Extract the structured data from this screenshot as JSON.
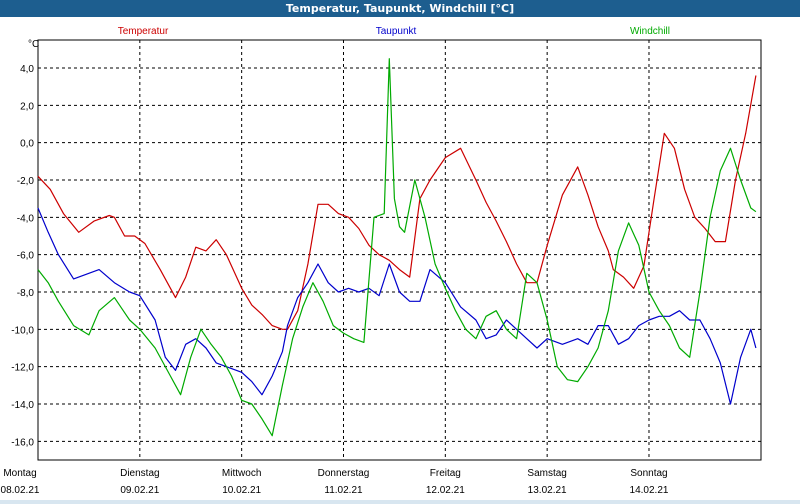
{
  "window_title": "Temperatur, Taupunkt, Windchill [°C]",
  "chart_data": {
    "type": "line",
    "title": "Temperatur, Taupunkt, Windchill [°C]",
    "ylabel": "°C",
    "xlabel": "",
    "ylim": [
      -17.0,
      5.5
    ],
    "xlim": [
      0,
      7.1
    ],
    "yticks": [
      4.0,
      2.0,
      0.0,
      -2.0,
      -4.0,
      -6.0,
      -8.0,
      -10.0,
      -12.0,
      -14.0,
      -16.0
    ],
    "ytick_labels": [
      "4,0",
      "2,0",
      "0,0",
      "-2,0",
      "-4,0",
      "-6,0",
      "-8,0",
      "-10,0",
      "-12,0",
      "-14,0",
      "-16,0"
    ],
    "x_ticks": [
      {
        "day": "Montag",
        "date": "08.02.21",
        "x": 0
      },
      {
        "day": "Dienstag",
        "date": "09.02.21",
        "x": 1
      },
      {
        "day": "Mittwoch",
        "date": "10.02.21",
        "x": 2
      },
      {
        "day": "Donnerstag",
        "date": "11.02.21",
        "x": 3
      },
      {
        "day": "Freitag",
        "date": "12.02.21",
        "x": 4
      },
      {
        "day": "Samstag",
        "date": "13.02.21",
        "x": 5
      },
      {
        "day": "Sonntag",
        "date": "14.02.21",
        "x": 6
      }
    ],
    "grid": true,
    "series": [
      {
        "name": "Temperatur",
        "color": "#cc0000",
        "x": [
          0,
          0.12,
          0.25,
          0.4,
          0.55,
          0.7,
          0.75,
          0.85,
          0.95,
          1.05,
          1.2,
          1.35,
          1.45,
          1.55,
          1.65,
          1.75,
          1.85,
          2.0,
          2.1,
          2.2,
          2.3,
          2.4,
          2.45,
          2.55,
          2.65,
          2.75,
          2.85,
          2.95,
          3.05,
          3.15,
          3.25,
          3.35,
          3.45,
          3.55,
          3.65,
          3.75,
          3.85,
          4.0,
          4.15,
          4.3,
          4.4,
          4.5,
          4.6,
          4.7,
          4.8,
          4.9,
          5.0,
          5.15,
          5.3,
          5.4,
          5.5,
          5.6,
          5.65,
          5.75,
          5.85,
          5.95,
          6.05,
          6.15,
          6.25,
          6.35,
          6.45,
          6.55,
          6.65,
          6.75,
          6.85,
          6.95,
          7.05
        ],
        "values": [
          -1.8,
          -2.5,
          -3.8,
          -4.8,
          -4.2,
          -3.9,
          -4.0,
          -5.0,
          -5.0,
          -5.4,
          -6.8,
          -8.3,
          -7.2,
          -5.6,
          -5.8,
          -5.2,
          -6.0,
          -7.8,
          -8.7,
          -9.2,
          -9.8,
          -10.0,
          -10.0,
          -9.0,
          -6.5,
          -3.3,
          -3.3,
          -3.8,
          -4.0,
          -4.6,
          -5.5,
          -6.0,
          -6.3,
          -6.8,
          -7.2,
          -3.0,
          -2.0,
          -0.8,
          -0.3,
          -2.0,
          -3.2,
          -4.2,
          -5.3,
          -6.5,
          -7.5,
          -7.5,
          -5.5,
          -2.8,
          -1.3,
          -2.8,
          -4.5,
          -5.8,
          -6.8,
          -7.2,
          -7.8,
          -6.6,
          -3.0,
          0.5,
          -0.3,
          -2.5,
          -4.0,
          -4.6,
          -5.3,
          -5.3,
          -2.0,
          0.5,
          3.6
        ]
      },
      {
        "name": "Taupunkt",
        "color": "#0000cc",
        "x": [
          0,
          0.1,
          0.2,
          0.35,
          0.5,
          0.6,
          0.75,
          0.9,
          1.0,
          1.15,
          1.25,
          1.35,
          1.45,
          1.55,
          1.65,
          1.75,
          1.85,
          2.0,
          2.1,
          2.2,
          2.3,
          2.4,
          2.45,
          2.55,
          2.65,
          2.75,
          2.85,
          2.95,
          3.05,
          3.15,
          3.25,
          3.35,
          3.45,
          3.55,
          3.65,
          3.75,
          3.85,
          4.0,
          4.15,
          4.3,
          4.4,
          4.5,
          4.6,
          4.7,
          4.8,
          4.9,
          5.0,
          5.15,
          5.3,
          5.4,
          5.5,
          5.6,
          5.7,
          5.8,
          5.9,
          6.0,
          6.1,
          6.2,
          6.3,
          6.4,
          6.5,
          6.6,
          6.7,
          6.8,
          6.9,
          7.0,
          7.05
        ],
        "values": [
          -3.5,
          -4.8,
          -6.0,
          -7.3,
          -7.0,
          -6.8,
          -7.5,
          -8.0,
          -8.2,
          -9.5,
          -11.5,
          -12.2,
          -10.8,
          -10.5,
          -11.0,
          -11.8,
          -12.0,
          -12.3,
          -12.8,
          -13.5,
          -12.5,
          -11.2,
          -9.8,
          -8.3,
          -7.5,
          -6.5,
          -7.5,
          -8.0,
          -7.8,
          -8.0,
          -7.8,
          -8.2,
          -6.5,
          -8.0,
          -8.5,
          -8.5,
          -6.8,
          -7.5,
          -8.8,
          -9.5,
          -10.5,
          -10.3,
          -9.5,
          -10.0,
          -10.5,
          -11.0,
          -10.5,
          -10.8,
          -10.5,
          -10.8,
          -9.8,
          -9.8,
          -10.8,
          -10.5,
          -9.8,
          -9.5,
          -9.3,
          -9.3,
          -9.0,
          -9.5,
          -9.5,
          -10.5,
          -11.8,
          -14.0,
          -11.5,
          -10.0,
          -11.0
        ]
      },
      {
        "name": "Windchill",
        "color": "#00aa00",
        "x": [
          0,
          0.1,
          0.2,
          0.35,
          0.5,
          0.6,
          0.75,
          0.9,
          1.0,
          1.15,
          1.3,
          1.4,
          1.5,
          1.6,
          1.7,
          1.8,
          1.9,
          2.0,
          2.1,
          2.2,
          2.3,
          2.4,
          2.5,
          2.6,
          2.7,
          2.8,
          2.9,
          3.0,
          3.1,
          3.2,
          3.3,
          3.4,
          3.45,
          3.5,
          3.55,
          3.6,
          3.7,
          3.8,
          3.9,
          4.0,
          4.1,
          4.2,
          4.3,
          4.4,
          4.5,
          4.6,
          4.7,
          4.8,
          4.9,
          5.0,
          5.1,
          5.2,
          5.3,
          5.4,
          5.5,
          5.6,
          5.7,
          5.8,
          5.9,
          6.0,
          6.1,
          6.2,
          6.3,
          6.4,
          6.5,
          6.6,
          6.7,
          6.8,
          6.9,
          7.0,
          7.05
        ],
        "values": [
          -6.8,
          -7.5,
          -8.5,
          -9.8,
          -10.3,
          -9.0,
          -8.3,
          -9.5,
          -10.0,
          -11.0,
          -12.5,
          -13.5,
          -11.5,
          -10.0,
          -10.8,
          -11.5,
          -12.5,
          -13.8,
          -14.0,
          -14.8,
          -15.7,
          -13.0,
          -10.5,
          -8.8,
          -7.5,
          -8.5,
          -9.8,
          -10.2,
          -10.5,
          -10.7,
          -4.0,
          -3.8,
          4.5,
          -3.0,
          -4.5,
          -4.8,
          -2.0,
          -4.0,
          -6.5,
          -7.8,
          -9.0,
          -10.0,
          -10.5,
          -9.3,
          -9.0,
          -10.0,
          -10.5,
          -7.0,
          -7.5,
          -9.5,
          -12.0,
          -12.7,
          -12.8,
          -12.0,
          -11.0,
          -9.0,
          -5.8,
          -4.3,
          -5.5,
          -8.0,
          -9.0,
          -9.8,
          -11.0,
          -11.5,
          -8.0,
          -4.0,
          -1.5,
          -0.3,
          -2.0,
          -3.5,
          -3.7
        ]
      }
    ]
  }
}
